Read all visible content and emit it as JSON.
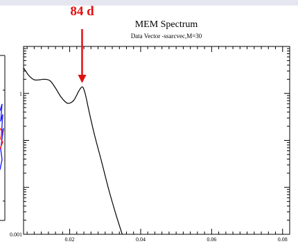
{
  "chart_data": {
    "type": "line",
    "title": "MEM Spectrum",
    "subtitle": "Data Vector -ssarcvec,M=30",
    "xlabel": "",
    "ylabel": "",
    "xlim": [
      0.007,
      0.082
    ],
    "ylim": [
      0.001,
      10
    ],
    "y_scale": "log",
    "grid": false,
    "x_ticks": [
      {
        "value": 0.02,
        "label": "0.02"
      },
      {
        "value": 0.04,
        "label": "0.04"
      },
      {
        "value": 0.06,
        "label": "0.06"
      },
      {
        "value": 0.08,
        "label": "0.08"
      }
    ],
    "y_ticks": [
      {
        "value": 0.001,
        "label": "0.001"
      },
      {
        "value": 1,
        "label": "1"
      }
    ],
    "series": [
      {
        "color": "#000000",
        "x": [
          0.007,
          0.0085,
          0.01,
          0.0115,
          0.013,
          0.0145,
          0.016,
          0.0175,
          0.019,
          0.02,
          0.0212,
          0.0225,
          0.0233,
          0.0238,
          0.0245,
          0.0255,
          0.027,
          0.029,
          0.031,
          0.033,
          0.0348
        ],
        "y": [
          3.5,
          2.4,
          1.95,
          1.95,
          2.0,
          1.85,
          1.3,
          0.85,
          0.64,
          0.62,
          0.72,
          1.1,
          1.35,
          1.32,
          0.9,
          0.4,
          0.13,
          0.035,
          0.009,
          0.0027,
          0.001
        ]
      }
    ],
    "annotations": [
      {
        "text": "84 d",
        "x": 0.0235,
        "y": 1.35,
        "color": "#e01010",
        "type": "arrow"
      }
    ]
  },
  "left_panel": {
    "tick_color": "#000000",
    "trace_colors": [
      "#2020ff",
      "#ff2020"
    ]
  }
}
